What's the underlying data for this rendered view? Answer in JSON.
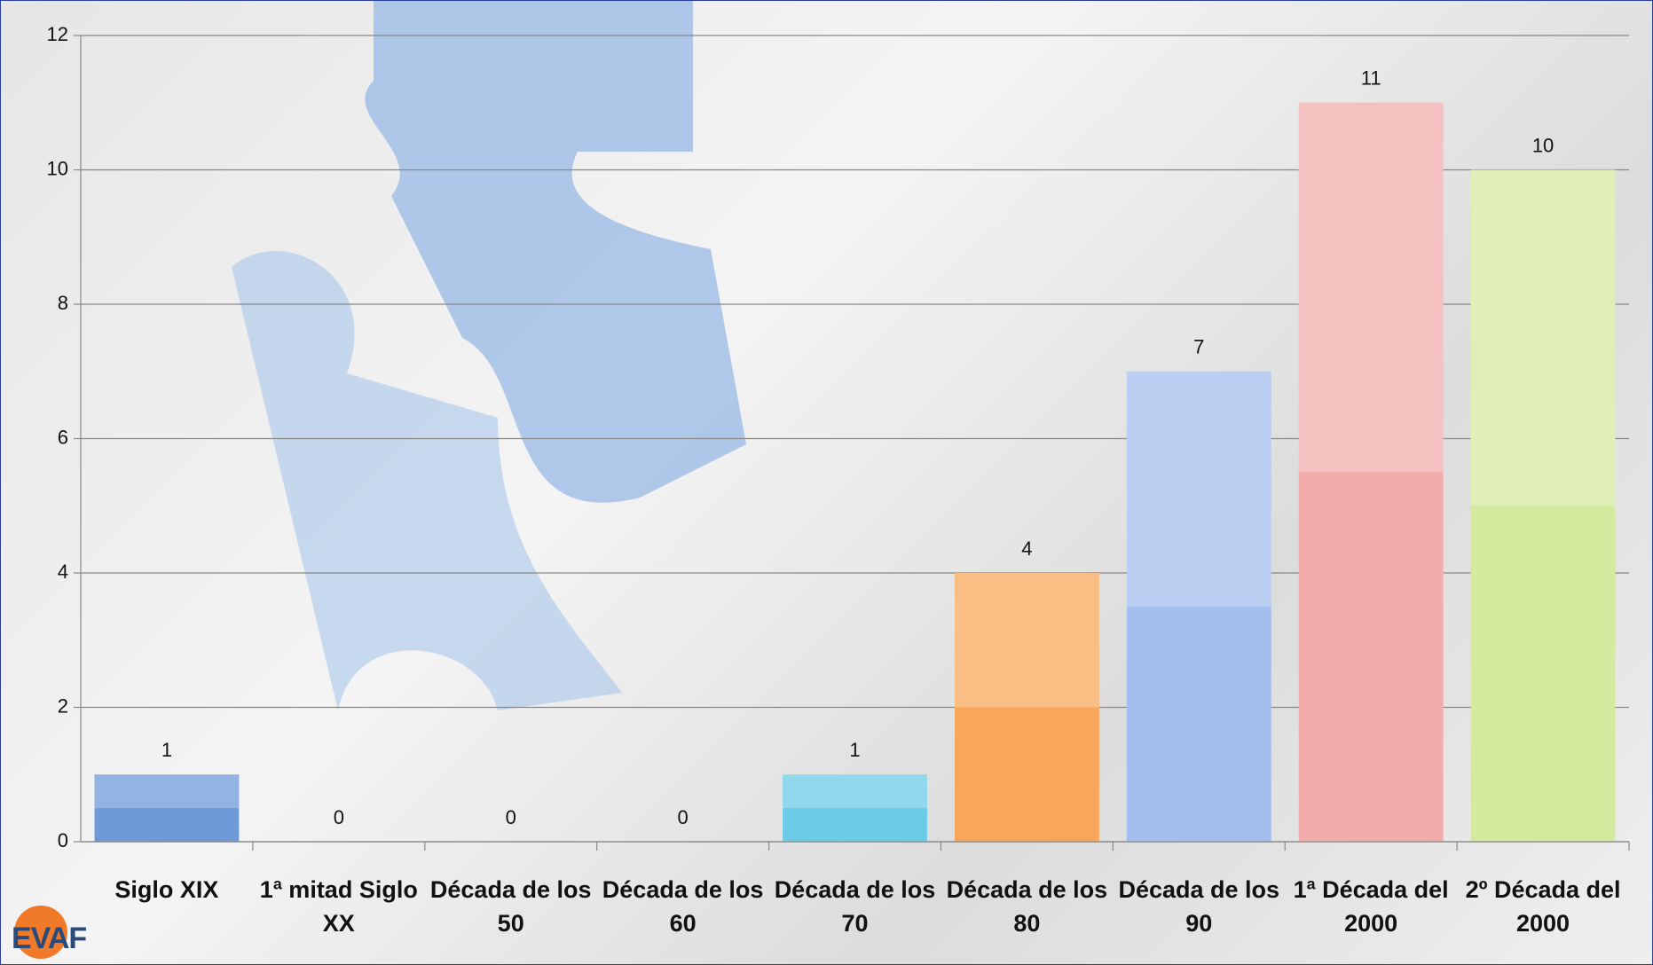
{
  "chart_data": {
    "type": "bar",
    "categories": [
      "Siglo XIX",
      "1ª mitad Siglo XX",
      "Década de los 50",
      "Década de los 60",
      "Década de los 70",
      "Década de los 80",
      "Década de los 90",
      "1ª Década del 2000",
      "2º Década del 2000"
    ],
    "values": [
      1,
      0,
      0,
      0,
      1,
      4,
      7,
      11,
      10
    ],
    "colors": [
      "#6f9ad8",
      "#6f9ad8",
      "#6f9ad8",
      "#6f9ad8",
      "#6ccbe6",
      "#f8a75a",
      "#a4bfee",
      "#f2acac",
      "#d4ea9f"
    ],
    "ylim": [
      0,
      12
    ],
    "yticks": [
      0,
      2,
      4,
      6,
      8,
      10,
      12
    ],
    "grid": true
  },
  "logo": "EVAF"
}
